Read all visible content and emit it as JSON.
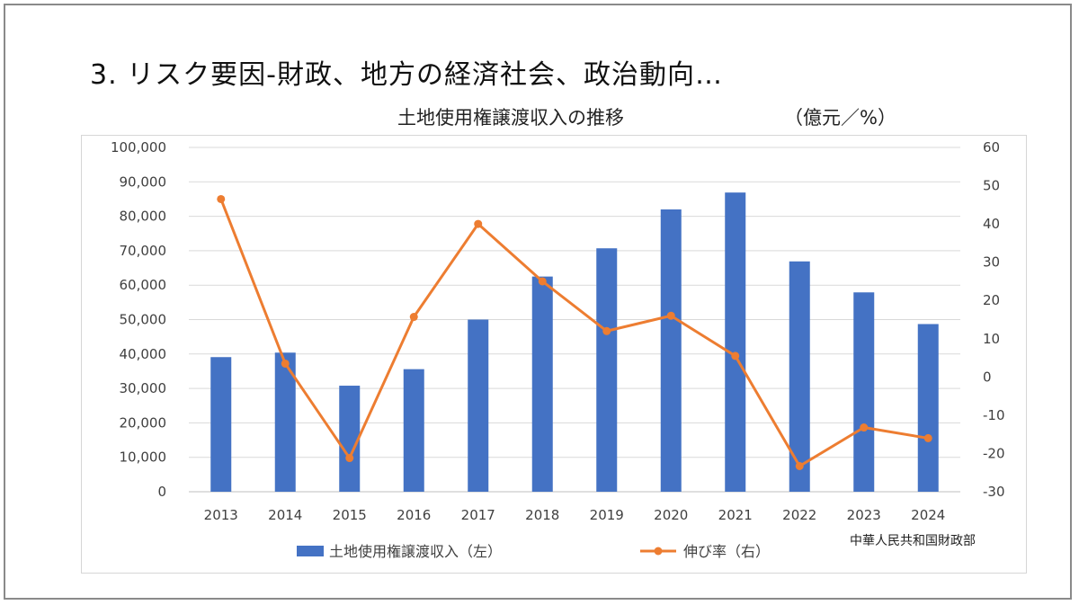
{
  "slide": {
    "title": "3.  リスク要因-財政、地方の経済社会、政治動向…"
  },
  "chart_data": {
    "type": "bar",
    "title": "土地使用権譲渡収入の推移",
    "unit": "（億元／%）",
    "source": "中華人民共和国財政部",
    "categories": [
      "2013",
      "2014",
      "2015",
      "2016",
      "2017",
      "2018",
      "2019",
      "2020",
      "2021",
      "2022",
      "2023",
      "2024"
    ],
    "series": [
      {
        "name": "土地使用権譲渡収入（左）",
        "type": "bar",
        "axis": "left",
        "color": "#4472C4",
        "values": [
          39100,
          40400,
          30800,
          35600,
          50000,
          62500,
          70700,
          82000,
          86900,
          66900,
          57900,
          48700
        ]
      },
      {
        "name": "伸び率（右）",
        "type": "line",
        "axis": "right",
        "color": "#ED7D31",
        "values": [
          46.5,
          3.5,
          -21.2,
          15.7,
          40.0,
          25.0,
          12.0,
          16.0,
          5.5,
          -23.3,
          -13.2,
          -16.0
        ]
      }
    ],
    "y_left": {
      "min": 0,
      "max": 100000,
      "ticks": [
        "0",
        "10,000",
        "20,000",
        "30,000",
        "40,000",
        "50,000",
        "60,000",
        "70,000",
        "80,000",
        "90,000",
        "100,000"
      ]
    },
    "y_right": {
      "min": -30,
      "max": 60,
      "ticks": [
        "-30",
        "-20",
        "-10",
        "0",
        "10",
        "20",
        "30",
        "40",
        "50",
        "60"
      ]
    },
    "grid": true,
    "legend_position": "bottom"
  }
}
